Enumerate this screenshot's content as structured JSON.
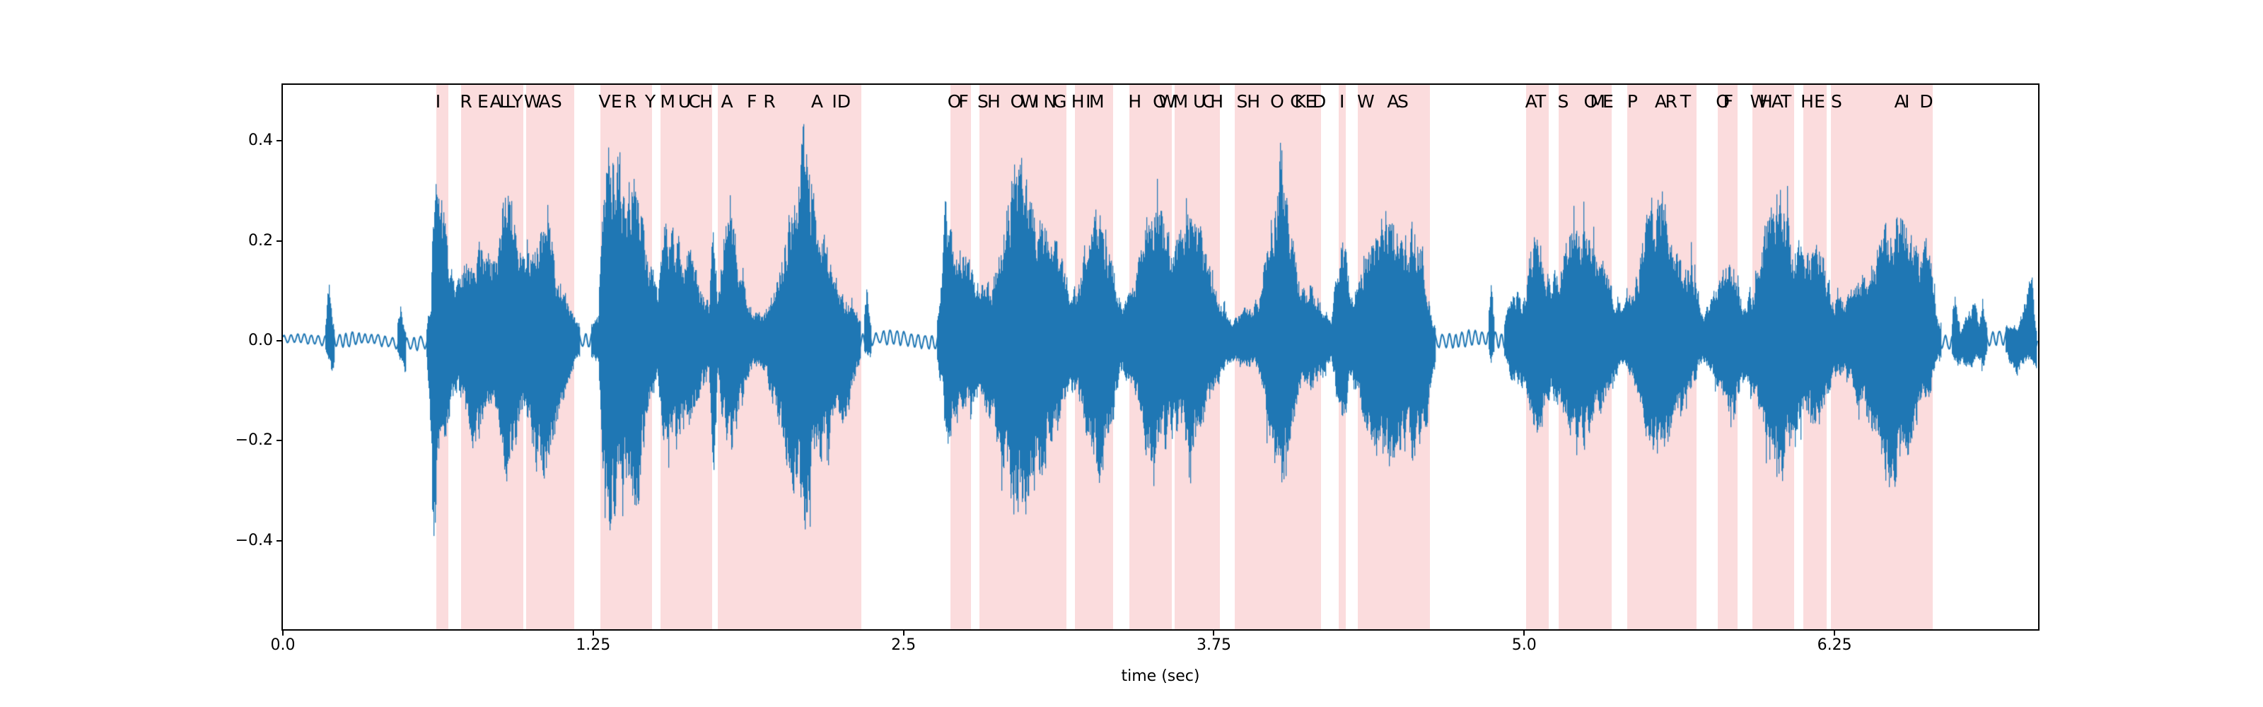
{
  "chart_data": {
    "type": "line",
    "title": "",
    "xlabel": "time (sec)",
    "ylabel": "",
    "xlim": [
      0,
      7.07
    ],
    "ylim": [
      -0.577,
      0.512
    ],
    "grid": false,
    "legend": "none",
    "line_color": "#1f77b4",
    "band_color": "#fbdcdd",
    "text_color": "#000000",
    "xticks": [
      {
        "t": 0.0,
        "label": "0.0"
      },
      {
        "t": 1.25,
        "label": "1.25"
      },
      {
        "t": 2.5,
        "label": "2.5"
      },
      {
        "t": 3.75,
        "label": "3.75"
      },
      {
        "t": 5.0,
        "label": "5.0"
      },
      {
        "t": 6.25,
        "label": "6.25"
      }
    ],
    "yticks": [
      {
        "v": 0.4,
        "label": "0.4"
      },
      {
        "v": 0.2,
        "label": "0.2"
      },
      {
        "v": 0.0,
        "label": "0.0"
      },
      {
        "v": -0.2,
        "label": "−0.2"
      },
      {
        "v": -0.4,
        "label": "−0.4"
      }
    ],
    "transcript": "I REALLY WAS VERY MUCH AFRAID OF SHOWING HIM HOW MUCH SHOCKED I WAS AT SOME PART OF WHAT HE SAID",
    "words": [
      {
        "word": "I",
        "start": 0.618,
        "end": 0.667,
        "letters": [
          {
            "ch": "I",
            "t": 0.625
          }
        ]
      },
      {
        "word": "REALLY",
        "start": 0.718,
        "end": 0.968,
        "letters": [
          {
            "ch": "R",
            "t": 0.738
          },
          {
            "ch": "E",
            "t": 0.806
          },
          {
            "ch": "A",
            "t": 0.858
          },
          {
            "ch": "L",
            "t": 0.892
          },
          {
            "ch": "L",
            "t": 0.916
          },
          {
            "ch": "Y",
            "t": 0.945
          }
        ]
      },
      {
        "word": "WAS",
        "start": 0.98,
        "end": 1.174,
        "letters": [
          {
            "ch": "W",
            "t": 1.006
          },
          {
            "ch": "A",
            "t": 1.054
          },
          {
            "ch": "S",
            "t": 1.102
          }
        ]
      },
      {
        "word": "VERY",
        "start": 1.279,
        "end": 1.487,
        "letters": [
          {
            "ch": "V",
            "t": 1.296
          },
          {
            "ch": "E",
            "t": 1.344
          },
          {
            "ch": "R",
            "t": 1.401
          },
          {
            "ch": "Y",
            "t": 1.48
          }
        ]
      },
      {
        "word": "MUCH",
        "start": 1.521,
        "end": 1.729,
        "letters": [
          {
            "ch": "M",
            "t": 1.55
          },
          {
            "ch": "U",
            "t": 1.618
          },
          {
            "ch": "C",
            "t": 1.658
          },
          {
            "ch": "H",
            "t": 1.705
          }
        ]
      },
      {
        "word": "AFRAID",
        "start": 1.752,
        "end": 2.33,
        "letters": [
          {
            "ch": "A",
            "t": 1.789
          },
          {
            "ch": "F",
            "t": 1.889
          },
          {
            "ch": "R",
            "t": 1.96
          },
          {
            "ch": "A",
            "t": 2.152
          },
          {
            "ch": "I",
            "t": 2.222
          },
          {
            "ch": "D",
            "t": 2.26
          }
        ]
      },
      {
        "word": "OF",
        "start": 2.689,
        "end": 2.772,
        "letters": [
          {
            "ch": "O",
            "t": 2.705
          },
          {
            "ch": "F",
            "t": 2.742
          }
        ]
      },
      {
        "word": "SHOWING",
        "start": 2.806,
        "end": 3.157,
        "letters": [
          {
            "ch": "S",
            "t": 2.82
          },
          {
            "ch": "H",
            "t": 2.864
          },
          {
            "ch": "O",
            "t": 2.958
          },
          {
            "ch": "W",
            "t": 3.006
          },
          {
            "ch": "I",
            "t": 3.036
          },
          {
            "ch": "N",
            "t": 3.09
          },
          {
            "ch": "G",
            "t": 3.13
          }
        ]
      },
      {
        "word": "HIM",
        "start": 3.191,
        "end": 3.345,
        "letters": [
          {
            "ch": "H",
            "t": 3.202
          },
          {
            "ch": "I",
            "t": 3.244
          },
          {
            "ch": "M",
            "t": 3.278
          }
        ]
      },
      {
        "word": "HOW",
        "start": 3.41,
        "end": 3.581,
        "letters": [
          {
            "ch": "H",
            "t": 3.432
          },
          {
            "ch": "O",
            "t": 3.532
          },
          {
            "ch": "W",
            "t": 3.562
          }
        ]
      },
      {
        "word": "MUCH",
        "start": 3.592,
        "end": 3.775,
        "letters": [
          {
            "ch": "M",
            "t": 3.616
          },
          {
            "ch": "U",
            "t": 3.692
          },
          {
            "ch": "C",
            "t": 3.728
          },
          {
            "ch": "H",
            "t": 3.762
          }
        ]
      },
      {
        "word": "SHOCKED",
        "start": 3.835,
        "end": 4.183,
        "letters": [
          {
            "ch": "S",
            "t": 3.864
          },
          {
            "ch": "H",
            "t": 3.91
          },
          {
            "ch": "O",
            "t": 4.005
          },
          {
            "ch": "C",
            "t": 4.082
          },
          {
            "ch": "K",
            "t": 4.098
          },
          {
            "ch": "E",
            "t": 4.14
          },
          {
            "ch": "D",
            "t": 4.175
          }
        ]
      },
      {
        "word": "I",
        "start": 4.254,
        "end": 4.282,
        "letters": [
          {
            "ch": "I",
            "t": 4.266
          }
        ]
      },
      {
        "word": "WAS",
        "start": 4.33,
        "end": 4.621,
        "letters": [
          {
            "ch": "W",
            "t": 4.362
          },
          {
            "ch": "A",
            "t": 4.472
          },
          {
            "ch": "S",
            "t": 4.512
          }
        ]
      },
      {
        "word": "AT",
        "start": 5.009,
        "end": 5.1,
        "letters": [
          {
            "ch": "A",
            "t": 5.028
          },
          {
            "ch": "T",
            "t": 5.066
          }
        ]
      },
      {
        "word": "SOME",
        "start": 5.14,
        "end": 5.353,
        "letters": [
          {
            "ch": "S",
            "t": 5.157
          },
          {
            "ch": "O",
            "t": 5.268
          },
          {
            "ch": "M",
            "t": 5.296
          },
          {
            "ch": "E",
            "t": 5.338
          }
        ]
      },
      {
        "word": "PART",
        "start": 5.416,
        "end": 5.695,
        "letters": [
          {
            "ch": "P",
            "t": 5.436
          },
          {
            "ch": "A",
            "t": 5.55
          },
          {
            "ch": "R",
            "t": 5.592
          },
          {
            "ch": "T",
            "t": 5.65
          }
        ]
      },
      {
        "word": "OF",
        "start": 5.781,
        "end": 5.858,
        "letters": [
          {
            "ch": "O",
            "t": 5.8
          },
          {
            "ch": "F",
            "t": 5.822
          }
        ]
      },
      {
        "word": "WHAT",
        "start": 5.92,
        "end": 6.088,
        "letters": [
          {
            "ch": "W",
            "t": 5.945
          },
          {
            "ch": "H",
            "t": 5.974
          },
          {
            "ch": "A",
            "t": 6.02
          },
          {
            "ch": "T",
            "t": 6.055
          }
        ]
      },
      {
        "word": "HE",
        "start": 6.123,
        "end": 6.217,
        "letters": [
          {
            "ch": "H",
            "t": 6.14
          },
          {
            "ch": "E",
            "t": 6.19
          }
        ]
      },
      {
        "word": "SAID",
        "start": 6.234,
        "end": 6.647,
        "letters": [
          {
            "ch": "S",
            "t": 6.258
          },
          {
            "ch": "A",
            "t": 6.515
          },
          {
            "ch": "I",
            "t": 6.542
          },
          {
            "ch": "D",
            "t": 6.62
          }
        ]
      }
    ],
    "envelope": [
      [
        0.0,
        0.012,
        0.012
      ],
      [
        0.165,
        0.015,
        0.015
      ],
      [
        0.185,
        0.14,
        0.05
      ],
      [
        0.198,
        0.05,
        0.08
      ],
      [
        0.215,
        0.015,
        0.015
      ],
      [
        0.26,
        0.028,
        0.02
      ],
      [
        0.3,
        0.014,
        0.014
      ],
      [
        0.455,
        0.015,
        0.015
      ],
      [
        0.472,
        0.11,
        0.04
      ],
      [
        0.488,
        0.03,
        0.077
      ],
      [
        0.505,
        0.015,
        0.015
      ],
      [
        0.575,
        0.02,
        0.02
      ],
      [
        0.595,
        0.1,
        0.2
      ],
      [
        0.605,
        0.38,
        0.55
      ],
      [
        0.62,
        0.4,
        0.3
      ],
      [
        0.64,
        0.3,
        0.24
      ],
      [
        0.665,
        0.2,
        0.18
      ],
      [
        0.7,
        0.13,
        0.12
      ],
      [
        0.73,
        0.17,
        0.16
      ],
      [
        0.77,
        0.21,
        0.22
      ],
      [
        0.81,
        0.22,
        0.19
      ],
      [
        0.85,
        0.17,
        0.15
      ],
      [
        0.89,
        0.32,
        0.27
      ],
      [
        0.91,
        0.35,
        0.3
      ],
      [
        0.94,
        0.26,
        0.22
      ],
      [
        0.97,
        0.17,
        0.15
      ],
      [
        1.0,
        0.21,
        0.27
      ],
      [
        1.04,
        0.25,
        0.33
      ],
      [
        1.07,
        0.26,
        0.28
      ],
      [
        1.1,
        0.17,
        0.2
      ],
      [
        1.14,
        0.1,
        0.1
      ],
      [
        1.17,
        0.06,
        0.06
      ],
      [
        1.21,
        0.025,
        0.025
      ],
      [
        1.27,
        0.05,
        0.05
      ],
      [
        1.295,
        0.4,
        0.35
      ],
      [
        1.315,
        0.45,
        0.45
      ],
      [
        1.345,
        0.45,
        0.33
      ],
      [
        1.38,
        0.28,
        0.3
      ],
      [
        1.418,
        0.46,
        0.4
      ],
      [
        1.45,
        0.25,
        0.25
      ],
      [
        1.48,
        0.18,
        0.15
      ],
      [
        1.51,
        0.12,
        0.1
      ],
      [
        1.535,
        0.25,
        0.22
      ],
      [
        1.58,
        0.22,
        0.26
      ],
      [
        1.63,
        0.21,
        0.2
      ],
      [
        1.685,
        0.12,
        0.1
      ],
      [
        1.715,
        0.08,
        0.07
      ],
      [
        1.733,
        0.33,
        0.33
      ],
      [
        1.75,
        0.1,
        0.09
      ],
      [
        1.78,
        0.28,
        0.24
      ],
      [
        1.81,
        0.26,
        0.24
      ],
      [
        1.85,
        0.13,
        0.12
      ],
      [
        1.89,
        0.065,
        0.06
      ],
      [
        1.93,
        0.06,
        0.055
      ],
      [
        1.98,
        0.13,
        0.15
      ],
      [
        2.03,
        0.27,
        0.25
      ],
      [
        2.07,
        0.38,
        0.32
      ],
      [
        2.095,
        0.45,
        0.42
      ],
      [
        2.13,
        0.31,
        0.29
      ],
      [
        2.18,
        0.22,
        0.26
      ],
      [
        2.22,
        0.14,
        0.18
      ],
      [
        2.27,
        0.1,
        0.16
      ],
      [
        2.315,
        0.06,
        0.06
      ],
      [
        2.335,
        0.02,
        0.02
      ],
      [
        2.352,
        0.13,
        0.035
      ],
      [
        2.37,
        0.025,
        0.045
      ],
      [
        2.4,
        0.02,
        0.02
      ],
      [
        2.52,
        0.025,
        0.02
      ],
      [
        2.535,
        0.045,
        0.025
      ],
      [
        2.56,
        0.02,
        0.02
      ],
      [
        2.63,
        0.025,
        0.025
      ],
      [
        2.655,
        0.15,
        0.12
      ],
      [
        2.668,
        0.3,
        0.3
      ],
      [
        2.7,
        0.22,
        0.18
      ],
      [
        2.735,
        0.21,
        0.18
      ],
      [
        2.775,
        0.15,
        0.15
      ],
      [
        2.815,
        0.13,
        0.14
      ],
      [
        2.86,
        0.15,
        0.19
      ],
      [
        2.91,
        0.29,
        0.31
      ],
      [
        2.955,
        0.43,
        0.38
      ],
      [
        3.0,
        0.33,
        0.36
      ],
      [
        3.05,
        0.27,
        0.31
      ],
      [
        3.1,
        0.23,
        0.21
      ],
      [
        3.15,
        0.15,
        0.13
      ],
      [
        3.195,
        0.11,
        0.11
      ],
      [
        3.25,
        0.27,
        0.25
      ],
      [
        3.29,
        0.28,
        0.31
      ],
      [
        3.34,
        0.17,
        0.19
      ],
      [
        3.38,
        0.07,
        0.07
      ],
      [
        3.43,
        0.13,
        0.11
      ],
      [
        3.48,
        0.29,
        0.25
      ],
      [
        3.52,
        0.33,
        0.28
      ],
      [
        3.57,
        0.23,
        0.21
      ],
      [
        3.61,
        0.25,
        0.21
      ],
      [
        3.66,
        0.3,
        0.26
      ],
      [
        3.71,
        0.22,
        0.18
      ],
      [
        3.76,
        0.11,
        0.09
      ],
      [
        3.81,
        0.05,
        0.05
      ],
      [
        3.87,
        0.065,
        0.055
      ],
      [
        3.93,
        0.085,
        0.075
      ],
      [
        3.98,
        0.31,
        0.27
      ],
      [
        4.02,
        0.42,
        0.35
      ],
      [
        4.06,
        0.25,
        0.21
      ],
      [
        4.1,
        0.11,
        0.09
      ],
      [
        4.14,
        0.145,
        0.12
      ],
      [
        4.18,
        0.085,
        0.075
      ],
      [
        4.22,
        0.045,
        0.045
      ],
      [
        4.265,
        0.25,
        0.21
      ],
      [
        4.3,
        0.11,
        0.09
      ],
      [
        4.345,
        0.17,
        0.15
      ],
      [
        4.4,
        0.27,
        0.25
      ],
      [
        4.45,
        0.3,
        0.28
      ],
      [
        4.52,
        0.23,
        0.25
      ],
      [
        4.56,
        0.25,
        0.28
      ],
      [
        4.6,
        0.18,
        0.22
      ],
      [
        4.625,
        0.05,
        0.08
      ],
      [
        4.65,
        0.02,
        0.02
      ],
      [
        4.85,
        0.02,
        0.02
      ],
      [
        4.865,
        0.12,
        0.05
      ],
      [
        4.882,
        0.02,
        0.03
      ],
      [
        4.91,
        0.025,
        0.025
      ],
      [
        4.94,
        0.09,
        0.07
      ],
      [
        4.97,
        0.12,
        0.1
      ],
      [
        5.0,
        0.1,
        0.09
      ],
      [
        5.025,
        0.21,
        0.18
      ],
      [
        5.065,
        0.24,
        0.2
      ],
      [
        5.105,
        0.13,
        0.11
      ],
      [
        5.155,
        0.19,
        0.17
      ],
      [
        5.21,
        0.285,
        0.25
      ],
      [
        5.27,
        0.23,
        0.21
      ],
      [
        5.33,
        0.15,
        0.13
      ],
      [
        5.39,
        0.065,
        0.055
      ],
      [
        5.44,
        0.11,
        0.09
      ],
      [
        5.49,
        0.25,
        0.22
      ],
      [
        5.54,
        0.34,
        0.28
      ],
      [
        5.59,
        0.27,
        0.23
      ],
      [
        5.64,
        0.15,
        0.13
      ],
      [
        5.675,
        0.2,
        0.11
      ],
      [
        5.72,
        0.055,
        0.045
      ],
      [
        5.8,
        0.15,
        0.13
      ],
      [
        5.84,
        0.19,
        0.16
      ],
      [
        5.88,
        0.085,
        0.075
      ],
      [
        5.94,
        0.15,
        0.13
      ],
      [
        5.99,
        0.31,
        0.27
      ],
      [
        6.04,
        0.33,
        0.3
      ],
      [
        6.09,
        0.21,
        0.19
      ],
      [
        6.14,
        0.19,
        0.17
      ],
      [
        6.19,
        0.22,
        0.18
      ],
      [
        6.24,
        0.1,
        0.09
      ],
      [
        6.29,
        0.085,
        0.075
      ],
      [
        6.35,
        0.13,
        0.15
      ],
      [
        6.41,
        0.19,
        0.23
      ],
      [
        6.48,
        0.27,
        0.31
      ],
      [
        6.54,
        0.28,
        0.26
      ],
      [
        6.59,
        0.19,
        0.16
      ],
      [
        6.63,
        0.22,
        0.12
      ],
      [
        6.665,
        0.04,
        0.04
      ],
      [
        6.72,
        0.03,
        0.03
      ],
      [
        6.735,
        0.12,
        0.05
      ],
      [
        6.755,
        0.03,
        0.05
      ],
      [
        6.81,
        0.095,
        0.05
      ],
      [
        6.83,
        0.04,
        0.04
      ],
      [
        6.845,
        0.095,
        0.07
      ],
      [
        6.865,
        0.03,
        0.03
      ],
      [
        6.93,
        0.03,
        0.04
      ],
      [
        6.985,
        0.03,
        0.075
      ],
      [
        7.045,
        0.145,
        0.04
      ],
      [
        7.06,
        0.03,
        0.07
      ],
      [
        7.07,
        0.02,
        0.02
      ]
    ]
  }
}
